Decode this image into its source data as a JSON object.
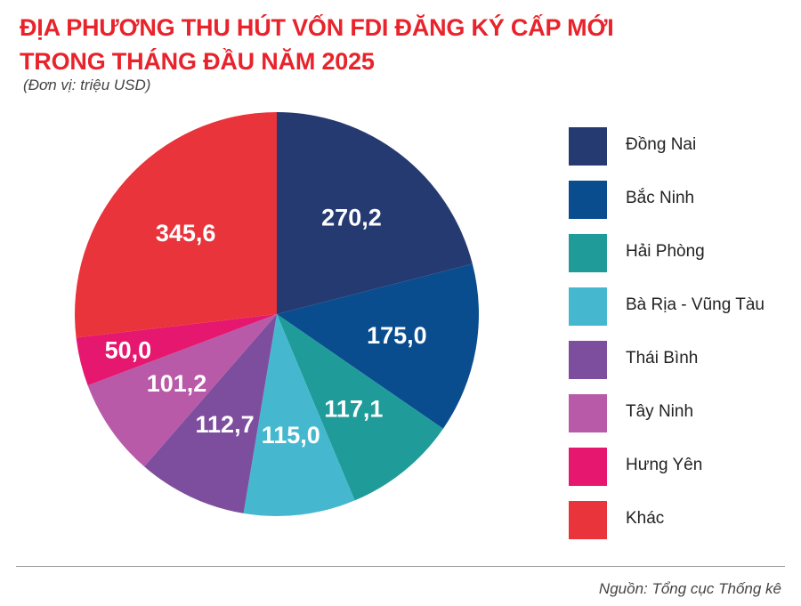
{
  "title": {
    "line1": "ĐỊA PHƯƠNG THU HÚT VỐN FDI ĐĂNG KÝ CẤP MỚI",
    "line2": "TRONG THÁNG ĐẦU NĂM 2025"
  },
  "unit_note": "(Đơn vị: triệu USD)",
  "source": "Nguồn: Tổng cục Thống kê",
  "chart_data": {
    "type": "pie",
    "title": "ĐỊA PHƯƠNG THU HÚT VỐN FDI ĐĂNG KÝ CẤP MỚI TRONG THÁNG ĐẦU NĂM 2025",
    "unit": "triệu USD",
    "legend_position": "right",
    "slices": [
      {
        "name": "Đồng Nai",
        "value": 270.2,
        "label": "270,2",
        "color": "#263a72"
      },
      {
        "name": "Bắc Ninh",
        "value": 175.0,
        "label": "175,0",
        "color": "#0a4d8f"
      },
      {
        "name": "Hải Phòng",
        "value": 117.1,
        "label": "117,1",
        "color": "#1f9c99"
      },
      {
        "name": "Bà Rịa - Vũng Tàu",
        "value": 115.0,
        "label": "115,0",
        "color": "#45b8d0"
      },
      {
        "name": "Thái Bình",
        "value": 112.7,
        "label": "112,7",
        "color": "#7e4e9e"
      },
      {
        "name": "Tây Ninh",
        "value": 101.2,
        "label": "101,2",
        "color": "#b85aa8"
      },
      {
        "name": "Hưng Yên",
        "value": 50.0,
        "label": "50,0",
        "color": "#e5176f"
      },
      {
        "name": "Khác",
        "value": 345.6,
        "label": "345,6",
        "color": "#e8343a"
      }
    ]
  }
}
